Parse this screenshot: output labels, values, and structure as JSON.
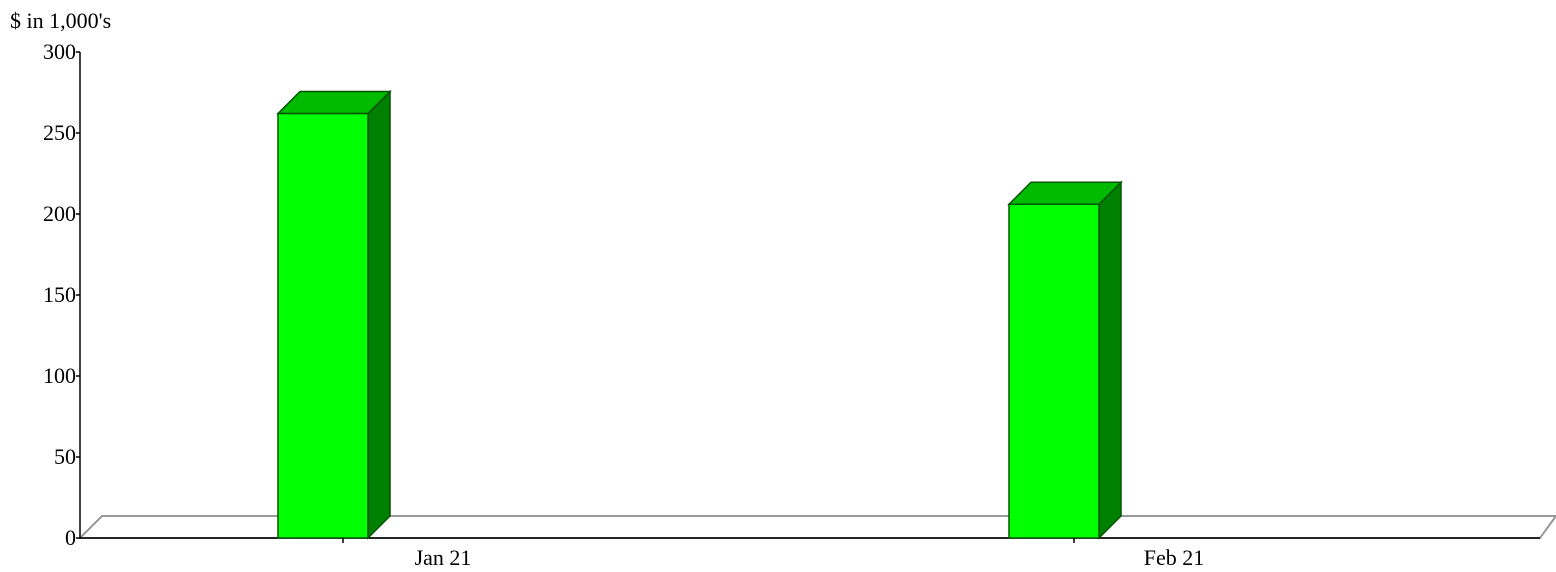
{
  "chart_data": {
    "type": "bar",
    "ylabel": "$ in 1,000's",
    "categories": [
      "Jan 21",
      "Feb 21"
    ],
    "series": [
      {
        "values": [
          262,
          206
        ],
        "color": "#00ff00"
      }
    ],
    "ylim": [
      0,
      300
    ],
    "yticks": [
      0,
      50,
      100,
      150,
      200,
      250,
      300
    ],
    "ytick_labels": [
      "0",
      "50",
      "100",
      "150",
      "200",
      "250",
      "300"
    ],
    "grid": false,
    "style": "3d",
    "colors": {
      "bar_front": "#00ff00",
      "bar_top": "#00bb00",
      "bar_side": "#008000",
      "bar_outline": "#005500",
      "floor_edge": "#999999",
      "axis": "#000000"
    }
  }
}
